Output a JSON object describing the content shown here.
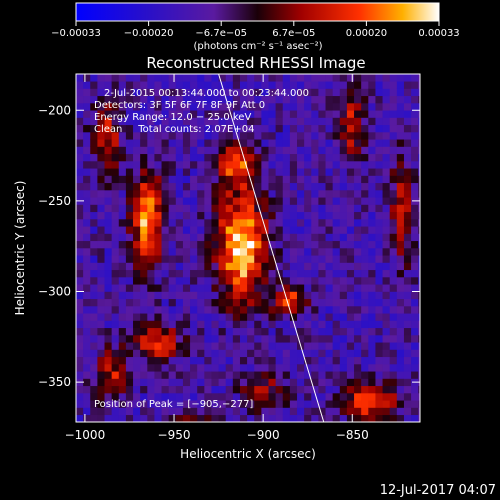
{
  "chart_data": {
    "type": "heatmap",
    "title": "Reconstructed RHESSI Image",
    "xlabel": "Heliocentric X (arcsec)",
    "ylabel": "Heliocentric Y (arcsec)",
    "xlim": [
      -1005,
      -812
    ],
    "ylim": [
      -372,
      -180
    ],
    "x_ticks": [
      {
        "v": -1000,
        "label": "−1000"
      },
      {
        "v": -950,
        "label": "−950"
      },
      {
        "v": -900,
        "label": "−900"
      },
      {
        "v": -850,
        "label": "−850"
      }
    ],
    "y_ticks": [
      {
        "v": -200,
        "label": "−200"
      },
      {
        "v": -250,
        "label": "−250"
      },
      {
        "v": -300,
        "label": "−300"
      },
      {
        "v": -350,
        "label": "−350"
      }
    ],
    "colorbar": {
      "range": [
        -0.00033,
        0.00033
      ],
      "tick_labels": [
        "−0.00033",
        "−0.00020",
        "−6.7e−05",
        "6.7e−05",
        "0.00020",
        "0.00033"
      ],
      "units": "(photons cm⁻² s⁻¹ asec⁻²)"
    },
    "annotations": [
      "2‑Jul‑2015 00:13:44.000 to 00:23:44.000",
      "Detectors: 3F 5F 6F 7F 8F 9F Att 0",
      "Energy Range: 12.0 − 25.0 keV",
      "Clean     Total counts: 2.07E+04"
    ],
    "peak_label": "Position of Peak = [−905,−277]",
    "peak": {
      "x": -905,
      "y": -277
    },
    "limb_line": [
      {
        "x": -925,
        "y": -180
      },
      {
        "x": -866,
        "y": -372
      }
    ],
    "bright_regions": [
      {
        "x": -912,
        "y": -275,
        "rx": 14,
        "ry": 30,
        "amp": 1.0
      },
      {
        "x": -965,
        "y": -260,
        "rx": 9,
        "ry": 26,
        "amp": 0.85
      },
      {
        "x": -915,
        "y": -230,
        "rx": 11,
        "ry": 11,
        "amp": 0.7
      },
      {
        "x": -988,
        "y": -215,
        "rx": 8,
        "ry": 20,
        "amp": 0.55
      },
      {
        "x": -960,
        "y": -328,
        "rx": 14,
        "ry": 10,
        "amp": 0.65
      },
      {
        "x": -885,
        "y": -305,
        "rx": 9,
        "ry": 8,
        "amp": 0.7
      },
      {
        "x": -840,
        "y": -360,
        "rx": 14,
        "ry": 10,
        "amp": 0.8
      },
      {
        "x": -850,
        "y": -210,
        "rx": 7,
        "ry": 20,
        "amp": 0.55
      },
      {
        "x": -822,
        "y": -255,
        "rx": 6,
        "ry": 28,
        "amp": 0.6
      },
      {
        "x": -900,
        "y": -355,
        "rx": 12,
        "ry": 10,
        "amp": 0.45
      },
      {
        "x": -985,
        "y": -345,
        "rx": 10,
        "ry": 14,
        "amp": 0.5
      },
      {
        "x": -940,
        "y": -370,
        "rx": 12,
        "ry": 6,
        "amp": 0.4
      }
    ]
  },
  "timestamp": "12‑Jul‑2017 04:07"
}
